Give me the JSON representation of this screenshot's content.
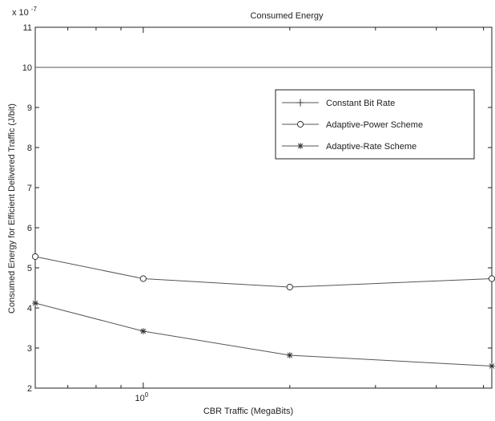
{
  "chart_data": {
    "type": "line",
    "title": "Consumed Energy",
    "xlabel": "CBR Traffic (MegaBits)",
    "ylabel": "Consumed Energy for Efficient Delivered Traffic (J/bit)",
    "x_scale": "log",
    "xlim": [
      0.6,
      5.2
    ],
    "ylim": [
      2,
      11
    ],
    "y_multiplier_label": "x 10",
    "y_multiplier_exponent": "-7",
    "x_ticks": [
      {
        "value": 1,
        "base": "10",
        "exponent": "0"
      }
    ],
    "y_ticks": [
      "2",
      "3",
      "4",
      "5",
      "6",
      "7",
      "8",
      "9",
      "10",
      "11"
    ],
    "legend_position": "upper-right",
    "x": [
      0.6,
      1,
      2,
      5.2
    ],
    "series": [
      {
        "name": "Constant Bit Rate",
        "marker": "plus",
        "values": [
          10,
          10,
          10,
          10
        ]
      },
      {
        "name": "Adaptive-Power Scheme",
        "marker": "circle",
        "values": [
          5.28,
          4.73,
          4.52,
          4.73
        ]
      },
      {
        "name": "Adaptive-Rate Scheme",
        "marker": "star",
        "values": [
          4.12,
          3.42,
          2.82,
          2.55
        ]
      }
    ],
    "colors": {
      "line": "#555555",
      "axis": "#222222",
      "background": "#ffffff"
    }
  }
}
